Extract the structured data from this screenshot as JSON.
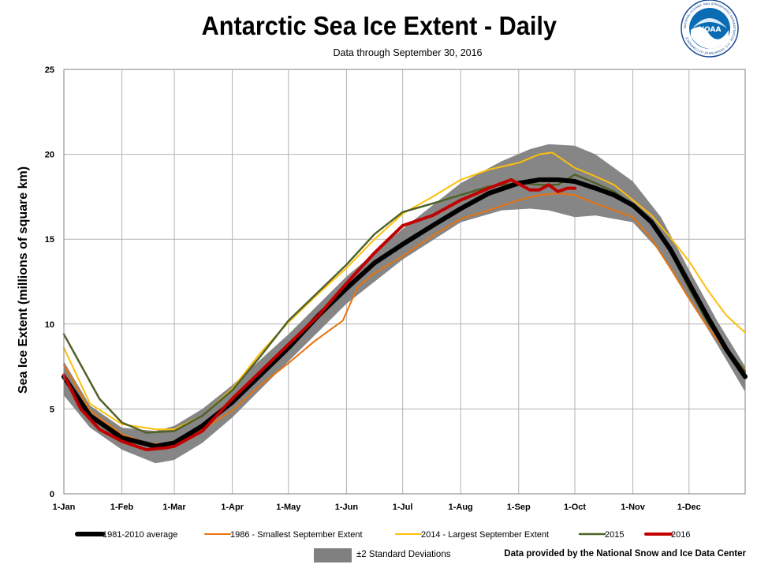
{
  "title": "Antarctic Sea Ice Extent - Daily",
  "subtitle": "Data through September 30, 2016",
  "credit": "Data provided by the National Snow and Ice Data Center",
  "logo": {
    "center_text": "NOAA",
    "ring_text": "NATIONAL OCEANIC AND ATMOSPHERIC ADMINISTRATION · U.S. DEPARTMENT OF COMMERCE"
  },
  "chart_data": {
    "type": "line",
    "title": "Antarctic Sea Ice Extent - Daily",
    "ylabel": "Sea Ice Extent (millions of square km)",
    "xlabel": "",
    "ylim": [
      0,
      25
    ],
    "yticks": [
      0,
      5,
      10,
      15,
      20,
      25
    ],
    "xlim_day": [
      1,
      365
    ],
    "xticks": [
      {
        "label": "1-Jan",
        "day": 1
      },
      {
        "label": "1-Feb",
        "day": 32
      },
      {
        "label": "1-Mar",
        "day": 60
      },
      {
        "label": "1-Apr",
        "day": 91
      },
      {
        "label": "1-May",
        "day": 121
      },
      {
        "label": "1-Jun",
        "day": 152
      },
      {
        "label": "1-Jul",
        "day": 182
      },
      {
        "label": "1-Aug",
        "day": 213
      },
      {
        "label": "1-Sep",
        "day": 244
      },
      {
        "label": "1-Oct",
        "day": 274
      },
      {
        "label": "1-Nov",
        "day": 305
      },
      {
        "label": "1-Dec",
        "day": 335
      }
    ],
    "grid": true,
    "band": {
      "name": "±2 Standard Deviations",
      "color": "#808080",
      "x": [
        1,
        15,
        32,
        50,
        60,
        75,
        91,
        121,
        152,
        182,
        213,
        235,
        250,
        260,
        274,
        285,
        305,
        320,
        335,
        350,
        365
      ],
      "lower": [
        5.8,
        3.9,
        2.6,
        1.8,
        2.0,
        3.0,
        4.5,
        7.8,
        11.2,
        13.8,
        16.0,
        16.7,
        16.8,
        16.7,
        16.3,
        16.4,
        16.0,
        14.2,
        11.5,
        8.8,
        6.0
      ],
      "upper": [
        7.8,
        5.2,
        3.9,
        3.7,
        4.0,
        5.0,
        6.4,
        9.4,
        12.8,
        15.6,
        18.3,
        19.6,
        20.3,
        20.6,
        20.5,
        20.0,
        18.4,
        16.3,
        13.2,
        10.2,
        7.5
      ]
    },
    "series": [
      {
        "name": "1981-2010 average",
        "color": "#000000",
        "width": 6,
        "x": [
          1,
          15,
          32,
          50,
          60,
          75,
          91,
          106,
          121,
          137,
          152,
          167,
          182,
          198,
          213,
          228,
          244,
          255,
          265,
          274,
          285,
          295,
          305,
          315,
          325,
          335,
          345,
          355,
          365
        ],
        "y": [
          6.9,
          4.6,
          3.3,
          2.8,
          3.0,
          4.0,
          5.4,
          7.0,
          8.6,
          10.5,
          12.1,
          13.6,
          14.7,
          15.8,
          16.8,
          17.7,
          18.3,
          18.5,
          18.5,
          18.4,
          18.0,
          17.6,
          17.0,
          16.0,
          14.4,
          12.4,
          10.4,
          8.5,
          6.9
        ]
      },
      {
        "name": "1986 - Smallest September Extent",
        "color": "#e8730e",
        "width": 2,
        "x": [
          1,
          15,
          32,
          45,
          55,
          60,
          75,
          91,
          106,
          121,
          135,
          145,
          150,
          158,
          167,
          182,
          198,
          213,
          228,
          244,
          255,
          265,
          274,
          285,
          295,
          305,
          315,
          325,
          335,
          345,
          355,
          365
        ],
        "y": [
          7.6,
          4.9,
          3.5,
          3.0,
          2.9,
          3.0,
          3.8,
          4.9,
          6.4,
          7.7,
          9.0,
          9.8,
          10.2,
          12.2,
          13.0,
          14.0,
          15.2,
          16.2,
          16.7,
          17.3,
          17.6,
          17.7,
          17.6,
          17.1,
          16.7,
          16.3,
          15.0,
          13.3,
          11.5,
          9.8,
          8.4,
          7.3
        ]
      },
      {
        "name": "2014 - Largest September Extent",
        "color": "#fcbf0a",
        "width": 2,
        "x": [
          1,
          15,
          32,
          50,
          60,
          75,
          91,
          106,
          121,
          137,
          152,
          167,
          182,
          198,
          213,
          228,
          244,
          255,
          262,
          274,
          285,
          295,
          305,
          315,
          325,
          335,
          345,
          355,
          365
        ],
        "y": [
          8.6,
          5.3,
          4.1,
          3.8,
          3.8,
          4.6,
          6.2,
          8.3,
          10.1,
          11.8,
          13.3,
          15.0,
          16.5,
          17.5,
          18.5,
          19.1,
          19.5,
          20.0,
          20.1,
          19.2,
          18.7,
          18.2,
          17.3,
          16.4,
          15.1,
          13.7,
          12.0,
          10.5,
          9.5
        ]
      },
      {
        "name": "2015",
        "color": "#4f6228",
        "width": 2.5,
        "x": [
          1,
          10,
          20,
          32,
          45,
          60,
          75,
          91,
          106,
          121,
          137,
          152,
          167,
          182,
          198,
          213,
          228,
          244,
          255,
          265,
          274,
          285,
          295,
          305,
          315,
          325,
          335,
          345,
          355,
          365
        ],
        "y": [
          9.4,
          7.6,
          5.6,
          4.2,
          3.6,
          3.7,
          4.6,
          6.1,
          8.1,
          10.2,
          11.9,
          13.5,
          15.3,
          16.6,
          17.1,
          17.6,
          18.1,
          18.3,
          18.2,
          18.2,
          18.8,
          18.3,
          17.8,
          17.0,
          15.9,
          14.3,
          12.1,
          10.1,
          8.6,
          7.2
        ]
      },
      {
        "name": "2016",
        "color": "#c00000",
        "width": 4,
        "x": [
          1,
          10,
          20,
          32,
          45,
          55,
          60,
          75,
          91,
          106,
          121,
          137,
          152,
          167,
          182,
          198,
          213,
          228,
          235,
          240,
          245,
          250,
          255,
          260,
          265,
          270,
          274
        ],
        "y": [
          7.0,
          5.0,
          3.8,
          3.1,
          2.6,
          2.7,
          2.8,
          3.7,
          5.6,
          7.2,
          8.8,
          10.5,
          12.4,
          14.2,
          15.8,
          16.4,
          17.3,
          18.0,
          18.3,
          18.5,
          18.2,
          17.9,
          17.9,
          18.2,
          17.8,
          18.0,
          18.0
        ]
      }
    ],
    "legend": {
      "placement": "bottom"
    }
  }
}
